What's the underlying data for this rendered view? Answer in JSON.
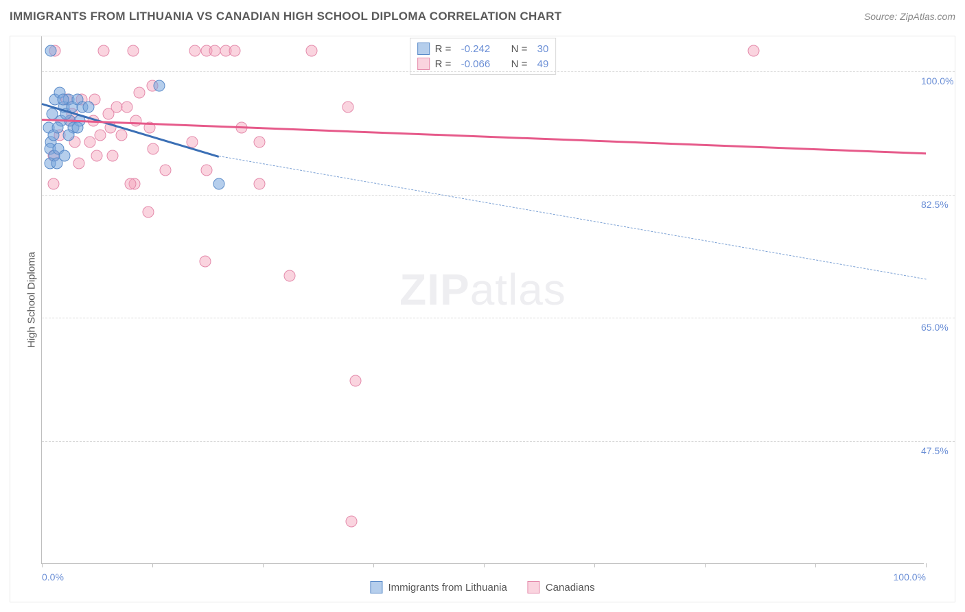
{
  "title": "IMMIGRANTS FROM LITHUANIA VS CANADIAN HIGH SCHOOL DIPLOMA CORRELATION CHART",
  "source_label": "Source: ZipAtlas.com",
  "ylabel": "High School Diploma",
  "watermark_bold": "ZIP",
  "watermark_rest": "atlas",
  "colors": {
    "blue_fill": "rgba(120,165,220,0.55)",
    "blue_stroke": "#5a8bc9",
    "pink_fill": "rgba(245,160,185,0.45)",
    "pink_stroke": "#e48aab",
    "trend_blue_solid": "#3b6fb5",
    "trend_blue_dash": "#7aa0d4",
    "trend_pink": "#e65a8a",
    "tick_text": "#6b8fd6",
    "axis_text": "#555555"
  },
  "axes": {
    "xlim": [
      0,
      100
    ],
    "ylim": [
      30,
      105
    ],
    "yticks": [
      {
        "v": 100.0,
        "label": "100.0%"
      },
      {
        "v": 82.5,
        "label": "82.5%"
      },
      {
        "v": 65.0,
        "label": "65.0%"
      },
      {
        "v": 47.5,
        "label": "47.5%"
      }
    ],
    "xticks_major": [
      0,
      12.5,
      25,
      37.5,
      50,
      62.5,
      75,
      87.5,
      100
    ],
    "xtick_labels": [
      {
        "v": 0,
        "label": "0.0%",
        "align": "left"
      },
      {
        "v": 100,
        "label": "100.0%",
        "align": "right"
      }
    ]
  },
  "legend_top": {
    "rows": [
      {
        "swatch_fill": "rgba(120,165,220,0.55)",
        "swatch_stroke": "#5a8bc9",
        "r_label": "R =",
        "r_val": "-0.242",
        "n_label": "N =",
        "n_val": "30"
      },
      {
        "swatch_fill": "rgba(245,160,185,0.45)",
        "swatch_stroke": "#e48aab",
        "r_label": "R =",
        "r_val": "-0.066",
        "n_label": "N =",
        "n_val": "49"
      }
    ]
  },
  "legend_bottom": [
    {
      "swatch_fill": "rgba(120,165,220,0.55)",
      "swatch_stroke": "#5a8bc9",
      "label": "Immigrants from Lithuania"
    },
    {
      "swatch_fill": "rgba(245,160,185,0.45)",
      "swatch_stroke": "#e48aab",
      "label": "Canadians"
    }
  ],
  "series": [
    {
      "name": "blue",
      "marker_fill": "rgba(120,165,220,0.55)",
      "marker_stroke": "#5a8bc9",
      "points": [
        [
          1.0,
          103
        ],
        [
          0.8,
          92
        ],
        [
          1.2,
          94
        ],
        [
          1.5,
          96
        ],
        [
          2.0,
          97
        ],
        [
          2.2,
          93
        ],
        [
          2.5,
          95
        ],
        [
          3.0,
          96
        ],
        [
          3.2,
          93
        ],
        [
          1.0,
          90
        ],
        [
          1.3,
          91
        ],
        [
          1.8,
          92
        ],
        [
          2.4,
          96
        ],
        [
          2.7,
          94
        ],
        [
          3.4,
          95
        ],
        [
          3.6,
          92
        ],
        [
          4.0,
          96
        ],
        [
          4.3,
          93
        ],
        [
          4.6,
          95
        ],
        [
          5.3,
          95
        ],
        [
          0.9,
          89
        ],
        [
          1.4,
          88
        ],
        [
          1.9,
          89
        ],
        [
          2.6,
          88
        ],
        [
          0.9,
          87
        ],
        [
          1.7,
          87
        ],
        [
          13.3,
          98
        ],
        [
          20.0,
          84
        ],
        [
          4.0,
          92
        ],
        [
          3.0,
          91
        ]
      ],
      "trend": {
        "segments": [
          {
            "x1": 0,
            "y1": 95.5,
            "x2": 20,
            "y2": 88,
            "style": "solid",
            "color": "#3b6fb5",
            "width": 3
          },
          {
            "x1": 20,
            "y1": 88,
            "x2": 100,
            "y2": 70.5,
            "style": "dashed",
            "color": "#7aa0d4",
            "width": 1.5
          }
        ]
      }
    },
    {
      "name": "pink",
      "marker_fill": "rgba(245,160,185,0.45)",
      "marker_stroke": "#e48aab",
      "points": [
        [
          1.5,
          103
        ],
        [
          7.0,
          103
        ],
        [
          10.3,
          103
        ],
        [
          17.3,
          103
        ],
        [
          18.6,
          103
        ],
        [
          19.6,
          103
        ],
        [
          20.8,
          103
        ],
        [
          21.8,
          103
        ],
        [
          30.5,
          103
        ],
        [
          80.5,
          103
        ],
        [
          12.5,
          98
        ],
        [
          2.8,
          96
        ],
        [
          4.5,
          96
        ],
        [
          6.0,
          96
        ],
        [
          8.5,
          95
        ],
        [
          11.0,
          97
        ],
        [
          3.2,
          93
        ],
        [
          5.8,
          93
        ],
        [
          7.5,
          94
        ],
        [
          9.6,
          95
        ],
        [
          10.6,
          93
        ],
        [
          2.0,
          91
        ],
        [
          3.7,
          90
        ],
        [
          5.4,
          90
        ],
        [
          7.8,
          92
        ],
        [
          12.2,
          92
        ],
        [
          1.3,
          88
        ],
        [
          4.2,
          87
        ],
        [
          6.2,
          88
        ],
        [
          8.0,
          88
        ],
        [
          12.6,
          89
        ],
        [
          17.0,
          90
        ],
        [
          1.3,
          84
        ],
        [
          10.5,
          84
        ],
        [
          14.0,
          86
        ],
        [
          18.6,
          86
        ],
        [
          22.6,
          92
        ],
        [
          24.6,
          90
        ],
        [
          34.6,
          95
        ],
        [
          10.0,
          84
        ],
        [
          24.6,
          84
        ],
        [
          12.0,
          80
        ],
        [
          18.5,
          73
        ],
        [
          28.0,
          71
        ],
        [
          35.5,
          56
        ],
        [
          35.0,
          36
        ],
        [
          3.4,
          94
        ],
        [
          6.6,
          91
        ],
        [
          9.0,
          91
        ]
      ],
      "trend": {
        "segments": [
          {
            "x1": 0,
            "y1": 93.3,
            "x2": 100,
            "y2": 88.5,
            "style": "solid",
            "color": "#e65a8a",
            "width": 3
          }
        ]
      }
    }
  ]
}
